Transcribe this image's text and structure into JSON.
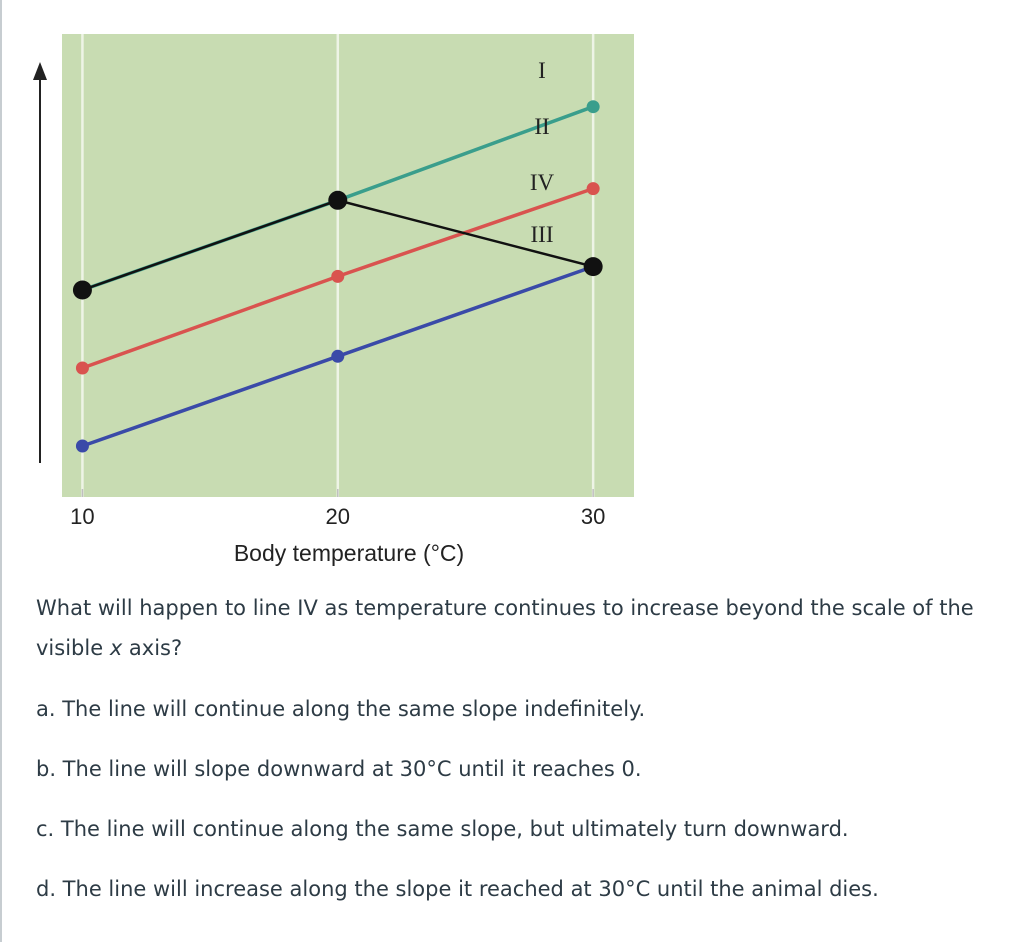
{
  "question": {
    "text_before_x": "What will happen to line IV as temperature continues to increase beyond the scale of the visible ",
    "x_symbol": "x",
    "text_after_x": " axis?",
    "options": [
      {
        "label": "a. The line will continue along the same slope indefinitely."
      },
      {
        "label": "b. The line will slope downward at 30°C until it reaches 0."
      },
      {
        "label": "c. The line will continue along the same slope, but ultimately turn downward."
      },
      {
        "label": "d. The line will increase along the slope it reached at 30°C until the animal dies."
      }
    ]
  },
  "chart_data": {
    "type": "line",
    "xlabel": "Body temperature (°C)",
    "ylabel": "",
    "x": [
      10,
      20,
      30
    ],
    "xticks": [
      "10",
      "20",
      "30"
    ],
    "xlim": [
      9.2,
      31.6
    ],
    "ylim": [
      0,
      10
    ],
    "y_axis_arrow": true,
    "grid": "vertical",
    "colors": {
      "background": "#c8dcb2",
      "grid": "#eef4e6",
      "I": "#3a9e8c",
      "II": "#d9534f",
      "III": "#3a4aa8",
      "IV": "#111111"
    },
    "series": [
      {
        "name": "I",
        "values": [
          4.0,
          6.3,
          8.7
        ]
      },
      {
        "name": "II",
        "values": [
          2.0,
          4.35,
          6.6
        ]
      },
      {
        "name": "III",
        "values": [
          0.0,
          2.3,
          4.6
        ]
      },
      {
        "name": "IV",
        "values": [
          4.0,
          6.3,
          4.6
        ]
      }
    ]
  }
}
